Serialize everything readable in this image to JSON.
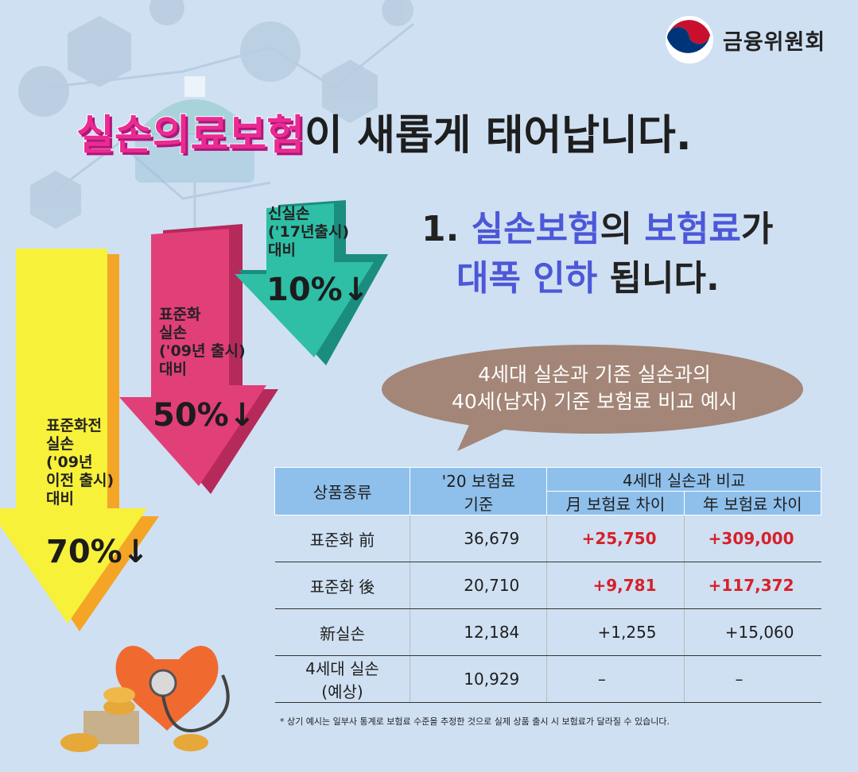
{
  "org": {
    "name": "금융위원회"
  },
  "headline": {
    "highlight": "실손의료보험",
    "rest": "이 새롭게 태어납니다."
  },
  "subheading": {
    "num": "1.",
    "p1": "실손보험",
    "t1": "의",
    "p2": "보험료",
    "t2": "가",
    "p3": "대폭 인하",
    "t3": "됩니다."
  },
  "arrows": [
    {
      "label": [
        "신실손",
        "('17년출시)",
        "대비"
      ],
      "pct": "10%↓",
      "color": "#28b7a0"
    },
    {
      "label": [
        "표준화",
        "실손",
        "('09년 출시)",
        "대비"
      ],
      "pct": "50%↓",
      "color": "#df3a72"
    },
    {
      "label": [
        "표준화전",
        "실손",
        "('09년",
        "이전 출시)",
        "대비"
      ],
      "pct": "70%↓",
      "color": "#f7f13a"
    }
  ],
  "bubble": {
    "line1": "4세대 실손과 기존 실손과의",
    "line2": "40세(남자) 기준 보험료 비교 예시"
  },
  "table": {
    "headers": {
      "product": "상품종류",
      "premium_l1": "'20 보험료",
      "premium_l2": "기준",
      "compare": "4세대 실손과 비교",
      "monthly": "月 보험료 차이",
      "yearly": "年 보험료 차이"
    },
    "rows": [
      {
        "product": "표준화 前",
        "premium": "36,679",
        "monthly": "+25,750",
        "yearly": "+309,000",
        "highlight": true
      },
      {
        "product": "표준화 後",
        "premium": "20,710",
        "monthly": "+9,781",
        "yearly": "+117,372",
        "highlight": true
      },
      {
        "product": "新실손",
        "premium": "12,184",
        "monthly": "+1,255",
        "yearly": "+15,060",
        "highlight": false
      },
      {
        "product": "4세대 실손\n(예상)",
        "premium": "10,929",
        "monthly": "–",
        "yearly": "–",
        "highlight": false
      }
    ]
  },
  "footnote": "* 상기 예시는 일부사 통계로 보험료 수준을 추정한 것으로 실제 상품 출시 시 보험료가 달라질 수 있습니다.",
  "colors": {
    "background": "#cfe0f2",
    "accent_pink": "#ea2b92",
    "accent_blue": "#4c58d8",
    "header_blue": "#8fc0ec",
    "diff_red": "#d6202a",
    "bubble_brown": "#a38677"
  }
}
